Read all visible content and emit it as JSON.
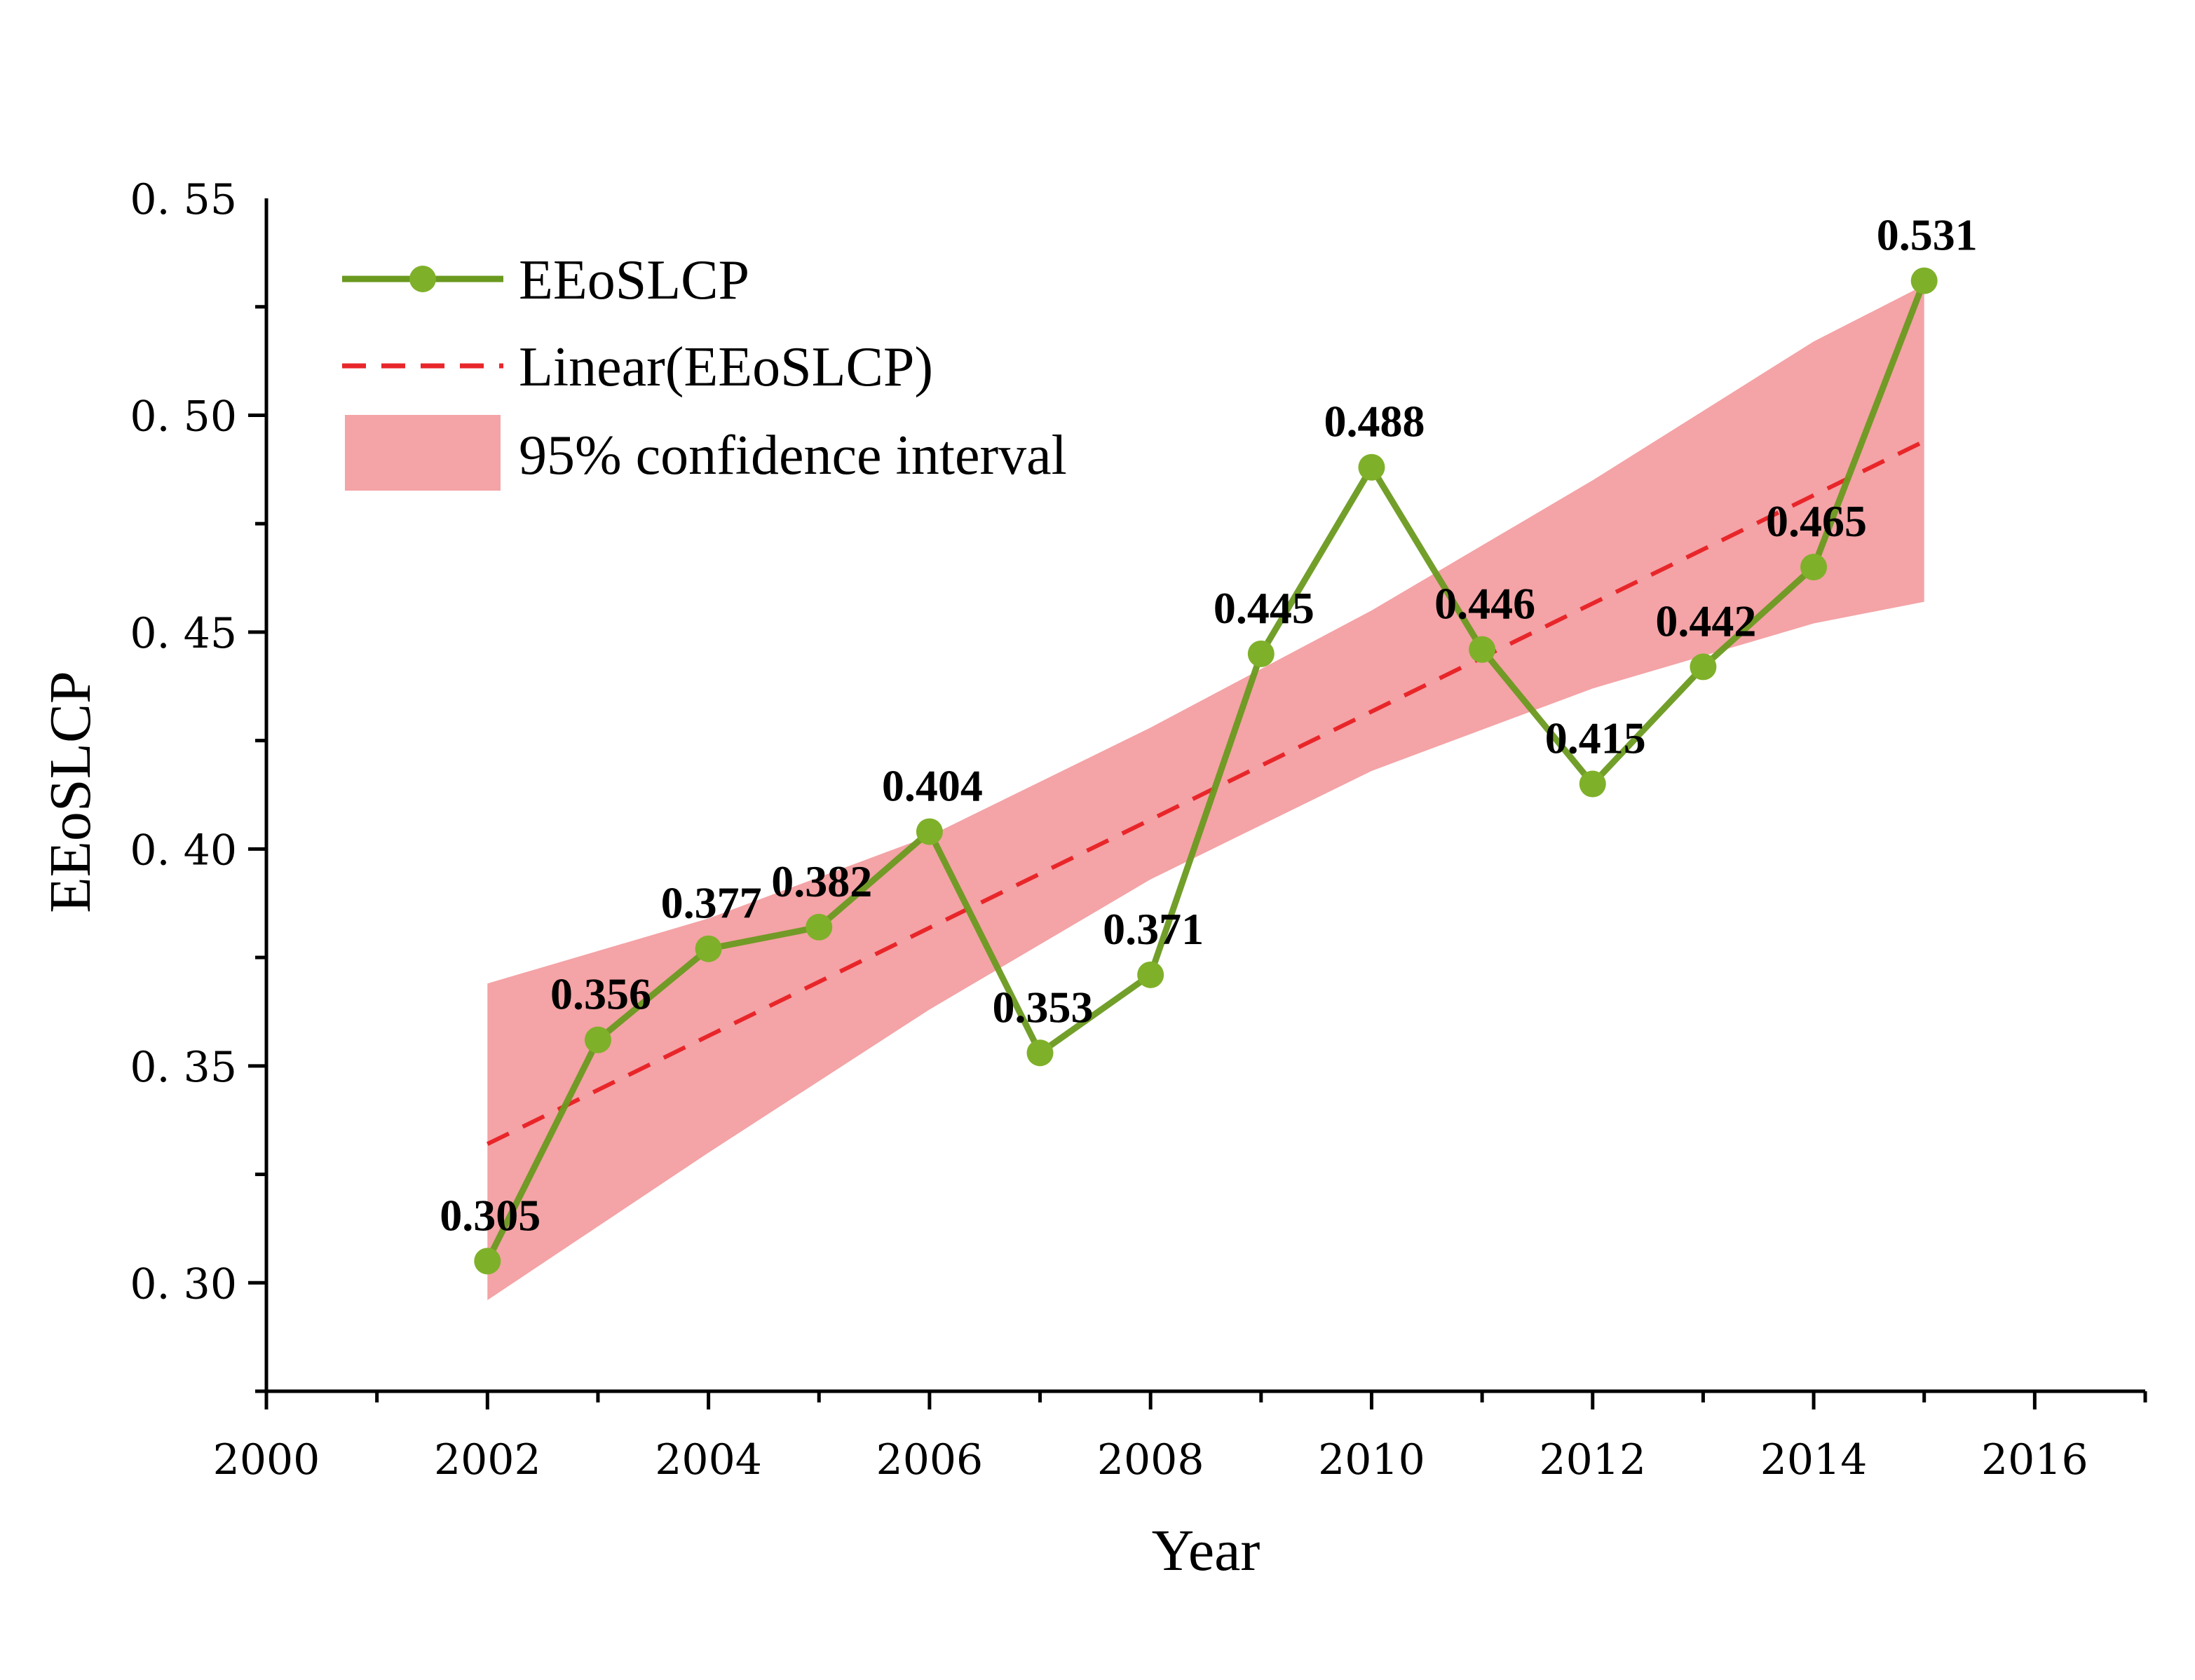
{
  "chart_data": {
    "type": "line",
    "xlabel": "Year",
    "ylabel": "EEoSLCP",
    "xlim": [
      2000,
      2017
    ],
    "ylim": [
      0.275,
      0.55
    ],
    "x_ticks": [
      2000,
      2002,
      2004,
      2006,
      2008,
      2010,
      2012,
      2014,
      2016
    ],
    "y_ticks": [
      0.3,
      0.35,
      0.4,
      0.45,
      0.5,
      0.55
    ],
    "y_tick_labels": [
      "0. 30",
      "0. 35",
      "0. 40",
      "0. 45",
      "0. 50",
      "0. 55"
    ],
    "legend_position": "top-left",
    "x": [
      2002,
      2003,
      2004,
      2005,
      2006,
      2007,
      2008,
      2009,
      2010,
      2011,
      2012,
      2013,
      2014,
      2015
    ],
    "series": [
      {
        "name": "EEoSLCP",
        "color": "#6a9a1f",
        "marker_color": "#7fb02a",
        "values": [
          0.305,
          0.356,
          0.377,
          0.382,
          0.404,
          0.353,
          0.371,
          0.445,
          0.488,
          0.446,
          0.415,
          0.442,
          0.465,
          0.531
        ],
        "labels": [
          "0.305",
          "0.356",
          "0.377",
          "0.382",
          "0.404",
          "0.353",
          "0.371",
          "0.445",
          "0.488",
          "0.446",
          "0.415",
          "0.442",
          "0.465",
          "0.531"
        ]
      },
      {
        "name": "Linear(EEoSLCP)",
        "color": "#e8262a",
        "style": "dashed",
        "x": [
          2002,
          2015
        ],
        "values": [
          0.332,
          0.494
        ]
      },
      {
        "name": "95% confidence interval",
        "color": "#f4a3a6",
        "type": "band",
        "x": [
          2002,
          2004,
          2006,
          2008,
          2010,
          2012,
          2014,
          2015
        ],
        "lower": [
          0.296,
          0.33,
          0.363,
          0.393,
          0.418,
          0.437,
          0.452,
          0.457
        ],
        "upper": [
          0.369,
          0.384,
          0.403,
          0.428,
          0.455,
          0.485,
          0.517,
          0.53
        ]
      }
    ]
  }
}
